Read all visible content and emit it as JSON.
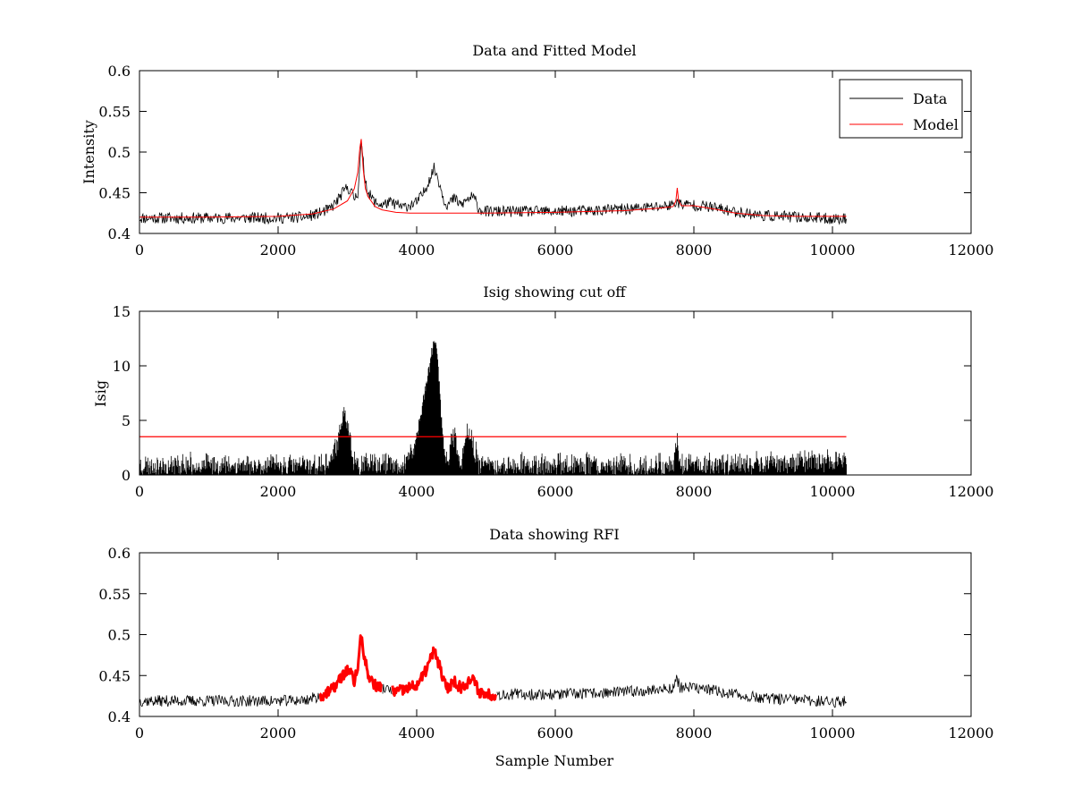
{
  "figure_background": "#ffffff",
  "colors": {
    "data": "#000000",
    "model": "#ff0000",
    "rfi": "#ff0000",
    "cutoff": "#ff0000"
  },
  "chart_data": [
    {
      "id": "p1",
      "type": "line",
      "title": "Data and Fitted Model",
      "xlabel": "",
      "ylabel": "Intensity",
      "xlim": [
        0,
        12000
      ],
      "ylim": [
        0.4,
        0.6
      ],
      "xticks": [
        0,
        2000,
        4000,
        6000,
        8000,
        10000,
        12000
      ],
      "xtick_labels": [
        "0",
        "2000",
        "4000",
        "6000",
        "8000",
        "10000",
        "12000"
      ],
      "yticks": [
        0.4,
        0.45,
        0.5,
        0.55,
        0.6
      ],
      "ytick_labels": [
        "0.4",
        "0.45",
        "0.5",
        "0.55",
        "0.6"
      ],
      "legend": {
        "location": "top-right",
        "entries": [
          "Data",
          "Model"
        ]
      },
      "series": [
        {
          "name": "Data",
          "color": "#000000",
          "style": "noisy",
          "noise": 0.007,
          "seed": 11,
          "x": [
            0,
            500,
            1000,
            1500,
            2000,
            2400,
            2600,
            2750,
            2850,
            2950,
            3000,
            3050,
            3100,
            3150,
            3200,
            3250,
            3300,
            3400,
            3500,
            3600,
            3700,
            3800,
            3900,
            4000,
            4100,
            4200,
            4250,
            4300,
            4350,
            4400,
            4450,
            4500,
            4550,
            4600,
            4650,
            4700,
            4800,
            4850,
            4900,
            5000,
            5500,
            6000,
            6500,
            7000,
            7500,
            7700,
            7750,
            7800,
            8000,
            8200,
            8500,
            9000,
            9500,
            10000,
            10200
          ],
          "y": [
            0.419,
            0.419,
            0.419,
            0.419,
            0.419,
            0.42,
            0.425,
            0.43,
            0.44,
            0.452,
            0.457,
            0.452,
            0.443,
            0.45,
            0.51,
            0.47,
            0.45,
            0.438,
            0.435,
            0.438,
            0.436,
            0.432,
            0.435,
            0.438,
            0.45,
            0.47,
            0.48,
            0.47,
            0.455,
            0.44,
            0.435,
            0.44,
            0.443,
            0.438,
            0.435,
            0.44,
            0.445,
            0.44,
            0.43,
            0.427,
            0.427,
            0.427,
            0.428,
            0.43,
            0.433,
            0.435,
            0.44,
            0.436,
            0.435,
            0.433,
            0.428,
            0.422,
            0.42,
            0.418,
            0.418
          ]
        },
        {
          "name": "Model",
          "color": "#ff0000",
          "style": "line",
          "x": [
            0,
            1000,
            2000,
            2500,
            2800,
            3000,
            3100,
            3150,
            3180,
            3200,
            3230,
            3260,
            3300,
            3400,
            3500,
            3700,
            3900,
            4000,
            5000,
            6000,
            7000,
            7500,
            7700,
            7740,
            7760,
            7780,
            7820,
            8000,
            8300,
            8600,
            9000,
            9500,
            10000,
            10200
          ],
          "y": [
            0.42,
            0.42,
            0.421,
            0.424,
            0.43,
            0.44,
            0.455,
            0.475,
            0.505,
            0.516,
            0.478,
            0.455,
            0.445,
            0.433,
            0.429,
            0.426,
            0.425,
            0.425,
            0.425,
            0.426,
            0.428,
            0.431,
            0.433,
            0.44,
            0.456,
            0.44,
            0.434,
            0.434,
            0.43,
            0.425,
            0.422,
            0.421,
            0.421,
            0.421
          ]
        }
      ]
    },
    {
      "id": "p2",
      "type": "line",
      "title": "Isig showing cut off",
      "xlabel": "",
      "ylabel": "Isig",
      "xlim": [
        0,
        12000
      ],
      "ylim": [
        0,
        15
      ],
      "xticks": [
        0,
        2000,
        4000,
        6000,
        8000,
        10000,
        12000
      ],
      "xtick_labels": [
        "0",
        "2000",
        "4000",
        "6000",
        "8000",
        "10000",
        "12000"
      ],
      "yticks": [
        0,
        5,
        10,
        15
      ],
      "ytick_labels": [
        "0",
        "5",
        "10",
        "15"
      ],
      "cutoff": 3.5,
      "series": [
        {
          "name": "Isig",
          "color": "#000000",
          "style": "bars",
          "noise": 1.6,
          "seed": 23,
          "x": [
            0,
            2000,
            2700,
            2850,
            2900,
            2950,
            3000,
            3050,
            3100,
            3200,
            3500,
            3800,
            3950,
            4000,
            4100,
            4200,
            4250,
            4300,
            4350,
            4400,
            4450,
            4500,
            4550,
            4600,
            4650,
            4700,
            4750,
            4800,
            4850,
            4900,
            5000,
            6000,
            7000,
            7700,
            7760,
            7820,
            8000,
            9000,
            10000,
            10200
          ],
          "y": [
            0.8,
            0.8,
            0.8,
            2.5,
            4.5,
            5.8,
            4.5,
            2.5,
            1.0,
            0.8,
            0.8,
            0.8,
            2.0,
            3.5,
            7.0,
            10.5,
            12.5,
            11.0,
            6.0,
            2.0,
            1.0,
            3.0,
            3.5,
            1.5,
            1.0,
            3.0,
            4.0,
            3.5,
            2.0,
            0.8,
            0.8,
            0.8,
            0.8,
            0.8,
            2.5,
            0.8,
            0.8,
            0.9,
            1.3,
            1.5
          ]
        },
        {
          "name": "Cut off",
          "color": "#ff0000",
          "style": "line",
          "x": [
            0,
            10200
          ],
          "y": [
            3.5,
            3.5
          ]
        }
      ]
    },
    {
      "id": "p3",
      "type": "line",
      "title": "Data showing RFI",
      "xlabel": "Sample Number",
      "ylabel": "",
      "xlim": [
        0,
        12000
      ],
      "ylim": [
        0.4,
        0.6
      ],
      "xticks": [
        0,
        2000,
        4000,
        6000,
        8000,
        10000,
        12000
      ],
      "xtick_labels": [
        "0",
        "2000",
        "4000",
        "6000",
        "8000",
        "10000",
        "12000"
      ],
      "yticks": [
        0.4,
        0.45,
        0.5,
        0.55,
        0.6
      ],
      "ytick_labels": [
        "0.4",
        "0.45",
        "0.5",
        "0.55",
        "0.6"
      ],
      "rfi_ranges": [
        [
          2600,
          3500
        ],
        [
          3650,
          5150
        ]
      ],
      "series": [
        {
          "name": "Data",
          "color": "#000000",
          "style": "noisy-rfi",
          "noise": 0.007,
          "seed": 37,
          "x": [
            0,
            500,
            1000,
            1500,
            2000,
            2400,
            2600,
            2750,
            2850,
            2950,
            3000,
            3050,
            3100,
            3150,
            3200,
            3250,
            3300,
            3400,
            3500,
            3600,
            3700,
            3800,
            3900,
            4000,
            4100,
            4200,
            4250,
            4300,
            4350,
            4400,
            4450,
            4500,
            4550,
            4600,
            4650,
            4700,
            4800,
            4850,
            4900,
            5000,
            5500,
            6000,
            6500,
            7000,
            7500,
            7700,
            7750,
            7800,
            8000,
            8200,
            8500,
            9000,
            9500,
            10000,
            10200
          ],
          "y": [
            0.419,
            0.419,
            0.419,
            0.419,
            0.419,
            0.42,
            0.425,
            0.43,
            0.44,
            0.452,
            0.457,
            0.452,
            0.443,
            0.46,
            0.5,
            0.47,
            0.45,
            0.438,
            0.435,
            0.432,
            0.43,
            0.432,
            0.435,
            0.438,
            0.45,
            0.47,
            0.48,
            0.47,
            0.455,
            0.44,
            0.435,
            0.44,
            0.443,
            0.438,
            0.435,
            0.44,
            0.445,
            0.44,
            0.43,
            0.427,
            0.427,
            0.427,
            0.428,
            0.43,
            0.433,
            0.435,
            0.445,
            0.436,
            0.435,
            0.433,
            0.428,
            0.422,
            0.42,
            0.418,
            0.418
          ]
        }
      ]
    }
  ]
}
